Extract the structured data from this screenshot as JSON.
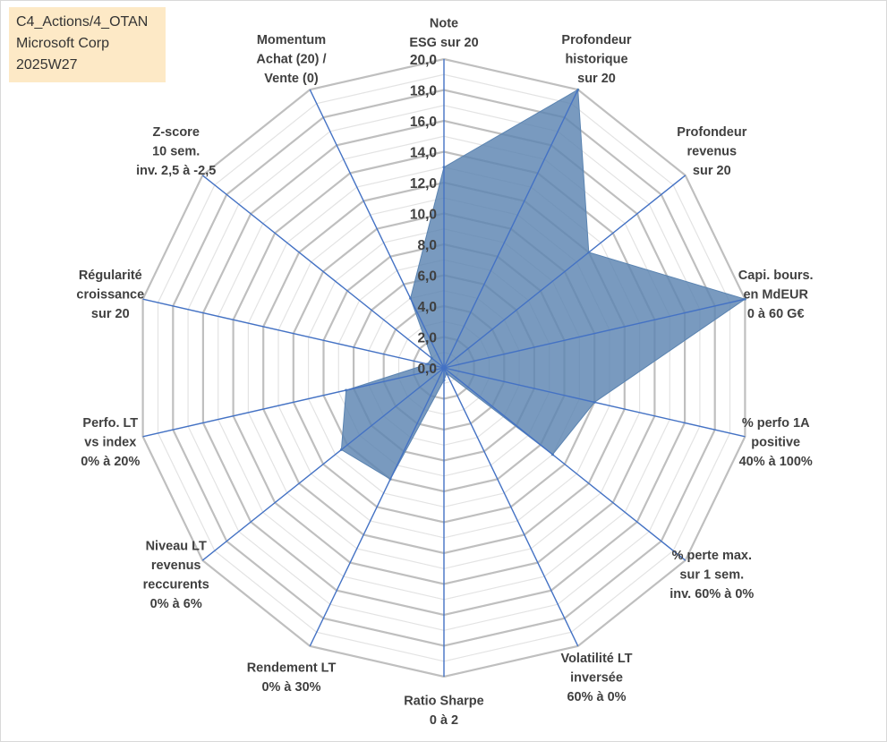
{
  "info_box": {
    "line1": "C4_Actions/4_OTAN",
    "line2": "Microsoft Corp",
    "line3": "2025W27"
  },
  "chart_data": {
    "type": "radar",
    "title": "",
    "r_range": [
      0,
      20
    ],
    "r_step": 2,
    "grid_minor_step": 1,
    "tick_labels": [
      "0,0",
      "2,0",
      "4,0",
      "6,0",
      "8,0",
      "10,0",
      "12,0",
      "14,0",
      "16,0",
      "18,0",
      "20,0"
    ],
    "axes": [
      {
        "label": [
          "Note",
          "ESG sur 20"
        ]
      },
      {
        "label": [
          "Profondeur",
          "historique",
          "sur 20"
        ]
      },
      {
        "label": [
          "Profondeur",
          "revenus",
          "sur 20"
        ]
      },
      {
        "label": [
          "Capi. bours.",
          "en MdEUR",
          "0 à 60 G€"
        ]
      },
      {
        "label": [
          "% perfo 1A",
          "positive",
          "40% à 100%"
        ]
      },
      {
        "label": [
          "% perte max.",
          "sur 1 sem.",
          "inv. 60% à 0%"
        ]
      },
      {
        "label": [
          "Volatilité LT",
          "inversée",
          "60% à 0%"
        ]
      },
      {
        "label": [
          "Ratio Sharpe",
          "0 à 2"
        ]
      },
      {
        "label": [
          "Rendement LT",
          "0% à 30%"
        ]
      },
      {
        "label": [
          "Niveau LT",
          "revenus",
          "reccurents",
          "0% à 6%"
        ]
      },
      {
        "label": [
          "Perfo. LT",
          "vs index",
          "0% à 20%"
        ]
      },
      {
        "label": [
          "Régularité",
          "croissance",
          "sur 20"
        ]
      },
      {
        "label": [
          "Z-score",
          "10 sem.",
          "inv. 2,5 à -2,5"
        ]
      },
      {
        "label": [
          "Momentum",
          "Achat (20) /",
          "Vente (0)"
        ]
      }
    ],
    "series": [
      {
        "values": [
          13.0,
          20.0,
          12.0,
          20.0,
          10.0,
          9.0,
          0.4,
          0.8,
          8.0,
          8.5,
          6.5,
          1.1,
          1.0,
          5.0
        ],
        "color": "#5b84b1"
      }
    ],
    "colors": {
      "fill": "#5b84b1",
      "axis_line": "#4472c4",
      "grid_major": "#bfbfbf",
      "grid_minor": "#e3e3e3"
    }
  }
}
